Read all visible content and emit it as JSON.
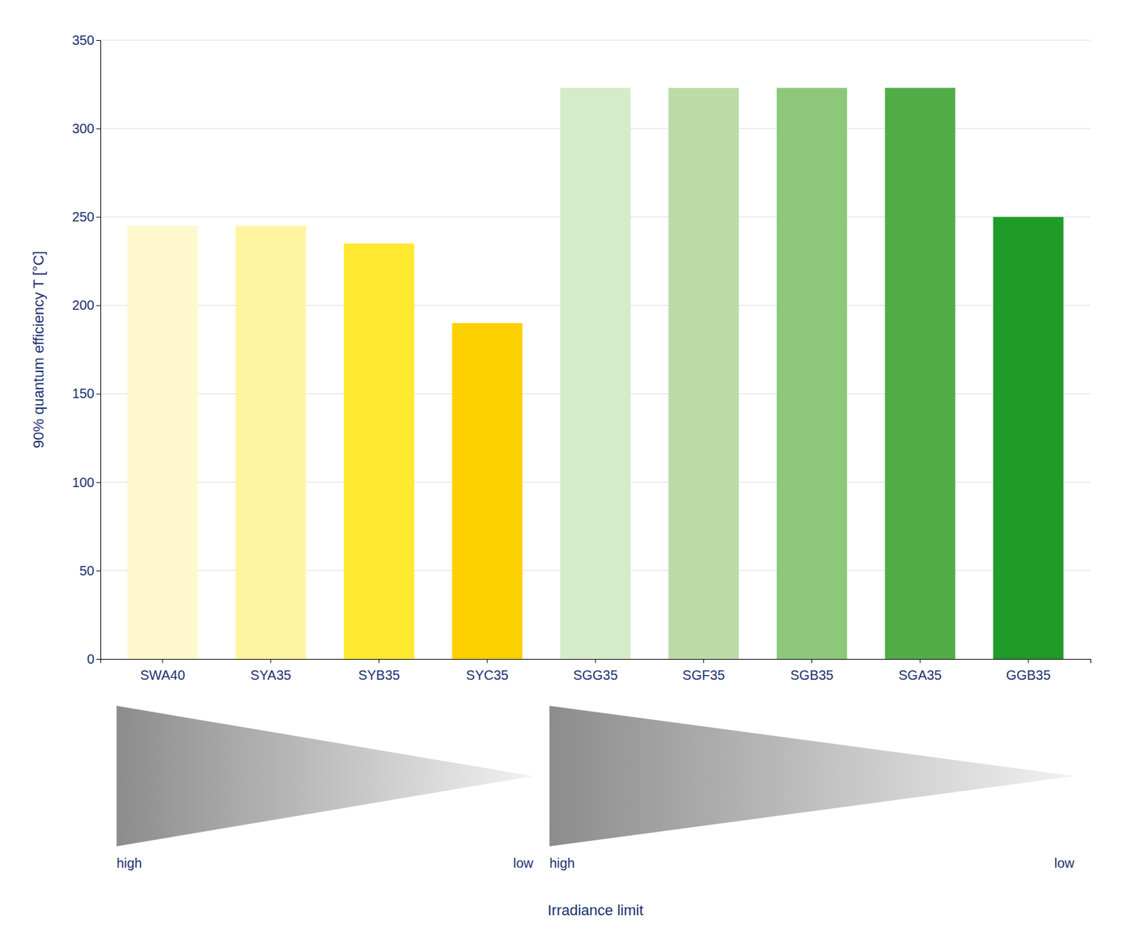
{
  "chart_data": {
    "type": "bar",
    "categories": [
      "SWA40",
      "SYA35",
      "SYB35",
      "SYC35",
      "SGG35",
      "SGF35",
      "SGB35",
      "SGA35",
      "GGB35"
    ],
    "values": [
      245,
      245,
      235,
      190,
      323,
      323,
      323,
      323,
      250
    ],
    "colors": [
      "#FFF8CC",
      "#FFF5A0",
      "#FFE830",
      "#FDD000",
      "#D4ECC8",
      "#BBDBA8",
      "#8DC87A",
      "#52AC48",
      "#1F9B28"
    ],
    "ylabel": "90% quantum efficiency T [°C]",
    "xlabel": "Irradiance limit",
    "annotations": [
      "high",
      "low",
      "high",
      "low"
    ],
    "ylim": [
      0,
      350
    ],
    "yticks": [
      0,
      50,
      100,
      150,
      200,
      250,
      300,
      350
    ],
    "grid": true
  }
}
